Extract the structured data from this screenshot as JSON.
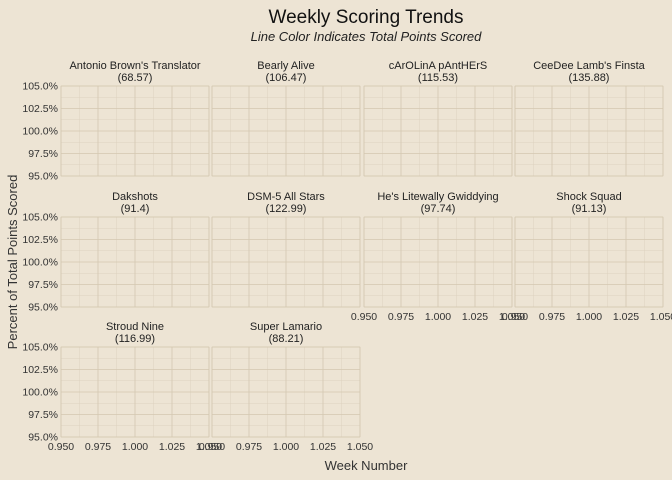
{
  "chart_data": {
    "type": "line",
    "title": "Weekly Scoring Trends",
    "subtitle": "Line Color Indicates Total Points Scored",
    "xlabel": "Week Number",
    "ylabel": "Percent of Total Points Scored",
    "xlim": [
      0.95,
      1.05
    ],
    "ylim": [
      0.95,
      1.05
    ],
    "x_ticks": [
      "0.950",
      "0.975",
      "1.000",
      "1.025",
      "1.050"
    ],
    "y_ticks": [
      "95.0%",
      "97.5%",
      "100.0%",
      "102.5%",
      "105.0%"
    ],
    "grid": true,
    "facets": [
      {
        "name": "Antonio Brown's Translator",
        "total": "(68.57)"
      },
      {
        "name": "Bearly Alive",
        "total": "(106.47)"
      },
      {
        "name": "cArOLinA pAntHErS",
        "total": "(115.53)"
      },
      {
        "name": "CeeDee Lamb's Finsta",
        "total": "(135.88)"
      },
      {
        "name": "Dakshots",
        "total": "(91.4)"
      },
      {
        "name": "DSM-5 All Stars",
        "total": "(122.99)"
      },
      {
        "name": "He's Litewally Gwiddying",
        "total": "(97.74)"
      },
      {
        "name": "Shock Squad",
        "total": "(91.13)"
      },
      {
        "name": "Stroud Nine",
        "total": "(116.99)"
      },
      {
        "name": "Super Lamario",
        "total": "(88.21)"
      }
    ]
  }
}
